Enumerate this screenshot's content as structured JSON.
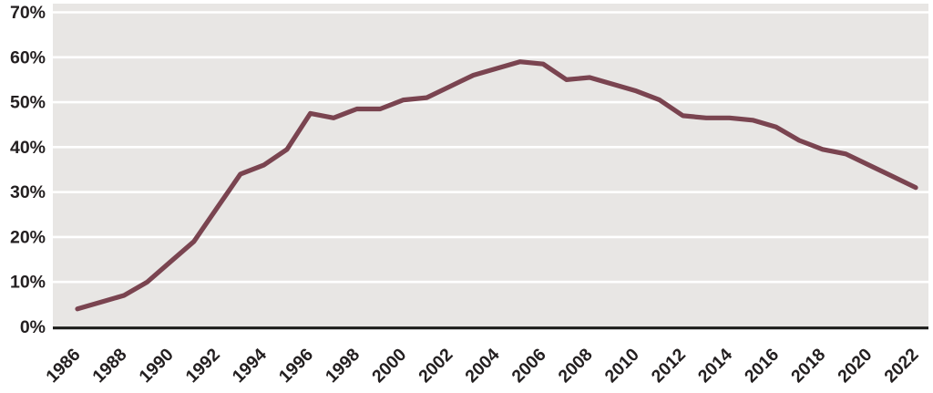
{
  "chart_data": {
    "type": "line",
    "title": "",
    "xlabel": "",
    "ylabel": "",
    "x": [
      1986,
      1987,
      1988,
      1989,
      1990,
      1991,
      1992,
      1993,
      1994,
      1995,
      1996,
      1997,
      1998,
      1999,
      2000,
      2001,
      2002,
      2003,
      2004,
      2005,
      2006,
      2007,
      2008,
      2009,
      2010,
      2011,
      2012,
      2013,
      2014,
      2015,
      2016,
      2017,
      2018,
      2019,
      2020,
      2021,
      2022
    ],
    "values": [
      4,
      5.5,
      7,
      10,
      14.5,
      19,
      26.5,
      34,
      36,
      39.5,
      47.5,
      46.5,
      48.5,
      48.5,
      50.5,
      51,
      53.5,
      56,
      57.5,
      59,
      58.5,
      55,
      55.5,
      54,
      52.5,
      50.5,
      47,
      46.5,
      46.5,
      46,
      44.5,
      41.5,
      39.5,
      38.5,
      36,
      33.5,
      31
    ],
    "ylim": [
      0,
      70
    ],
    "yticks": [
      0,
      10,
      20,
      30,
      40,
      50,
      60,
      70
    ],
    "ytick_labels": [
      "0%",
      "10%",
      "20%",
      "30%",
      "40%",
      "50%",
      "60%",
      "70%"
    ],
    "xticks": [
      1986,
      1988,
      1990,
      1992,
      1994,
      1996,
      1998,
      2000,
      2002,
      2004,
      2006,
      2008,
      2010,
      2012,
      2014,
      2016,
      2018,
      2020,
      2022
    ],
    "xtick_labels": [
      "1986",
      "1988",
      "1990",
      "1992",
      "1994",
      "1996",
      "1998",
      "2000",
      "2002",
      "2004",
      "2006",
      "2008",
      "2010",
      "2012",
      "2014",
      "2016",
      "2018",
      "2020",
      "2022"
    ],
    "grid": true,
    "legend_position": "none",
    "colors": {
      "line": "#7A4450",
      "plot_background": "#E8E6E4",
      "gridline": "#FFFFFF",
      "axis_line": "#1D1D1B",
      "tick_label": "#231F20",
      "page_background": "#FFFFFF"
    }
  }
}
